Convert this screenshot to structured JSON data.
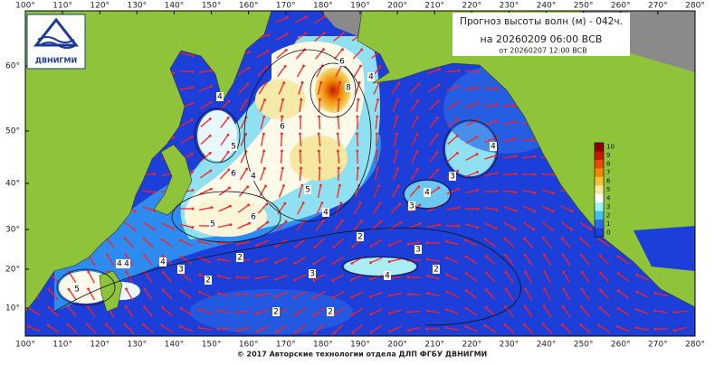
{
  "header": {
    "title": "Прогноз высоты волн (м) - 042ч.",
    "valid": "на 20260209 06:00 ВСВ",
    "issued": "от 20260207 12:00 ВСВ",
    "logo": "ДВНИГМИ"
  },
  "map": {
    "lon_labels": [
      "100°",
      "110°",
      "120°",
      "130°",
      "140°",
      "150°",
      "160°",
      "170°",
      "180°",
      "190°",
      "200°",
      "210°",
      "220°",
      "230°",
      "240°",
      "250°",
      "260°",
      "270°",
      "280°"
    ],
    "lat_labels": [
      "60°",
      "50°",
      "40°",
      "30°",
      "20°",
      "10°"
    ],
    "colorbar_labels": [
      "10",
      "9",
      "8",
      "7",
      "6",
      "5",
      "4",
      "3",
      "2",
      "1",
      "0"
    ],
    "contour_labels": [
      "4",
      "5",
      "6",
      "4",
      "6",
      "8",
      "6",
      "5",
      "4",
      "6",
      "5",
      "4",
      "3",
      "2",
      "4",
      "4",
      "3",
      "4",
      "2",
      "3",
      "4",
      "2",
      "3",
      "5",
      "2",
      "2",
      "2",
      "4",
      "3",
      "4"
    ]
  },
  "footer": "© 2017 Авторские технологии отдела ДЛП ФГБУ ДВНИГМИ"
}
